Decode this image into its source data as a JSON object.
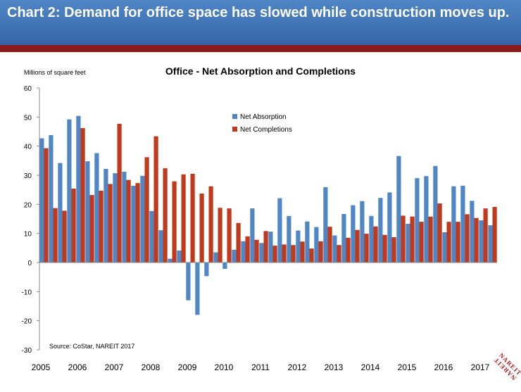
{
  "banner": {
    "title": "Chart 2: Demand for office space has slowed while construction moves up."
  },
  "colors": {
    "banner": "#3f76b8",
    "rule": "#8b1a1a",
    "absorption": "#4f86c6",
    "completions": "#c0391b"
  },
  "logo": {
    "line1": "NAREIT",
    "line2": "NAREIT"
  },
  "chart_data": {
    "type": "bar",
    "title": "Office - Net Absorption and Completions",
    "ylabel": "Millions of square feet",
    "xlabel": "",
    "ylim": [
      -30,
      60
    ],
    "yticks": [
      -30,
      -20,
      -10,
      0,
      10,
      20,
      30,
      40,
      50,
      60
    ],
    "grid": false,
    "legend_position": "top-center",
    "source": "Source: CoStar, NAREIT 2017",
    "categories": [
      "2005Q1",
      "2005Q2",
      "2005Q3",
      "2005Q4",
      "2006Q1",
      "2006Q2",
      "2006Q3",
      "2006Q4",
      "2007Q1",
      "2007Q2",
      "2007Q3",
      "2007Q4",
      "2008Q1",
      "2008Q2",
      "2008Q3",
      "2008Q4",
      "2009Q1",
      "2009Q2",
      "2009Q3",
      "2009Q4",
      "2010Q1",
      "2010Q2",
      "2010Q3",
      "2010Q4",
      "2011Q1",
      "2011Q2",
      "2011Q3",
      "2011Q4",
      "2012Q1",
      "2012Q2",
      "2012Q3",
      "2012Q4",
      "2013Q1",
      "2013Q2",
      "2013Q3",
      "2013Q4",
      "2014Q1",
      "2014Q2",
      "2014Q3",
      "2014Q4",
      "2015Q1",
      "2015Q2",
      "2015Q3",
      "2015Q4",
      "2016Q1",
      "2016Q2",
      "2016Q3",
      "2016Q4",
      "2017Q1",
      "2017Q2"
    ],
    "year_labels": [
      "2005",
      "2006",
      "2007",
      "2008",
      "2009",
      "2010",
      "2011",
      "2012",
      "2013",
      "2014",
      "2015",
      "2016",
      "2017"
    ],
    "series": [
      {
        "name": "Net Absorption",
        "values": [
          42.7,
          43.8,
          34.2,
          49.2,
          50.4,
          34.8,
          37.6,
          32.2,
          30.7,
          31.2,
          26.4,
          29.8,
          17.7,
          11.1,
          1.3,
          4.1,
          -13.0,
          -18.0,
          -4.7,
          3.5,
          -2.2,
          4.4,
          7.3,
          18.6,
          6.7,
          10.6,
          22.1,
          16.0,
          11.0,
          14.1,
          12.2,
          25.9,
          9.3,
          16.7,
          19.7,
          21.1,
          16.0,
          22.2,
          24.1,
          36.6,
          13.3,
          29.0,
          29.7,
          33.2,
          10.4,
          26.2,
          26.4,
          21.2,
          14.5,
          12.8
        ]
      },
      {
        "name": "Net Completions",
        "values": [
          39.3,
          18.7,
          17.8,
          25.4,
          46.2,
          23.2,
          24.7,
          27.0,
          47.7,
          28.4,
          27.3,
          36.2,
          43.4,
          32.4,
          27.9,
          30.3,
          30.5,
          23.7,
          26.2,
          18.8,
          18.6,
          13.6,
          9.0,
          7.8,
          10.8,
          5.8,
          6.2,
          6.0,
          7.2,
          4.8,
          7.3,
          12.3,
          6.0,
          8.5,
          11.2,
          9.9,
          12.4,
          9.5,
          8.7,
          16.1,
          15.8,
          14.0,
          15.8,
          20.3,
          14.0,
          14.0,
          16.6,
          15.3,
          18.6,
          19.1
        ]
      }
    ]
  }
}
